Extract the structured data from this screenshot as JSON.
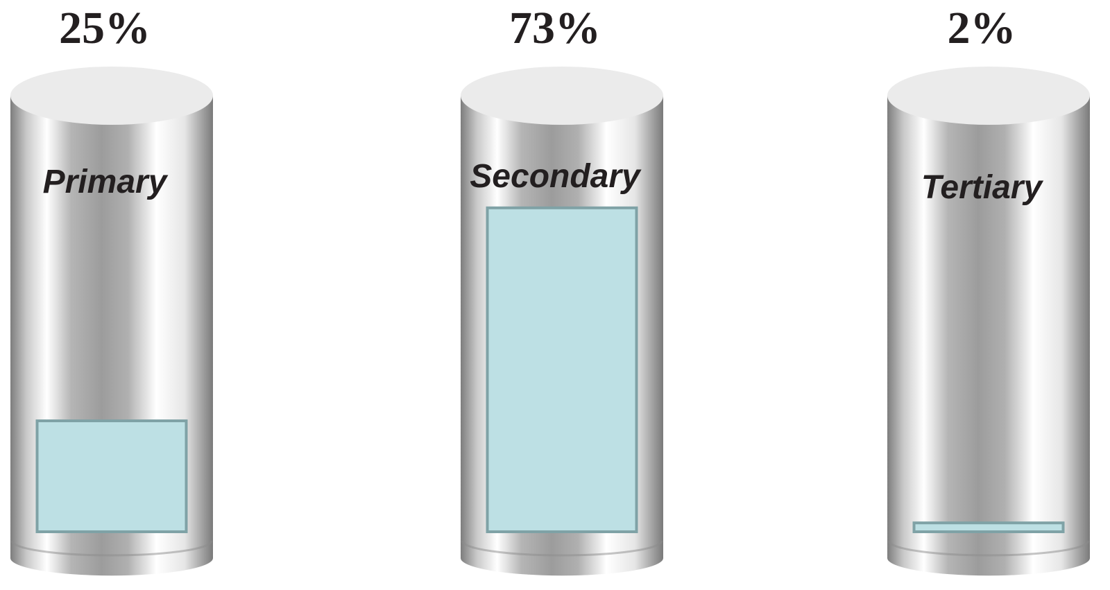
{
  "chart_data": {
    "type": "bar",
    "categories": [
      "Primary",
      "Secondary",
      "Tertiary"
    ],
    "values": [
      25,
      73,
      2
    ],
    "value_labels": [
      "25%",
      "73%",
      "2%"
    ],
    "color": "#bde0e4"
  }
}
